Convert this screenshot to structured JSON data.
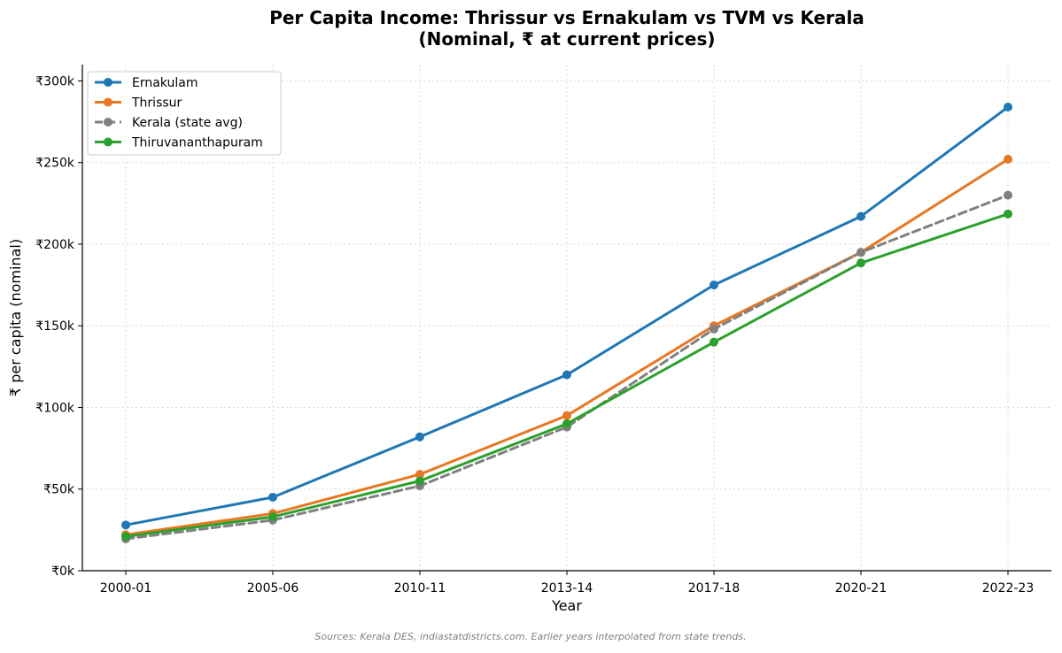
{
  "chart_data": {
    "type": "line",
    "title_lines": [
      "Per Capita Income: Thrissur vs Ernakulam vs TVM vs Kerala",
      "(Nominal, ₹ at current prices)"
    ],
    "xlabel": "Year",
    "ylabel": "₹ per capita (nominal)",
    "categories": [
      "2000-01",
      "2005-06",
      "2010-11",
      "2013-14",
      "2017-18",
      "2020-21",
      "2022-23"
    ],
    "ylim": [
      0,
      310000
    ],
    "yticks": [
      0,
      50000,
      100000,
      150000,
      200000,
      250000,
      300000
    ],
    "ytick_labels": [
      "₹0k",
      "₹50k",
      "₹100k",
      "₹150k",
      "₹200k",
      "₹250k",
      "₹300k"
    ],
    "grid": true,
    "legend_position": "top-left",
    "series": [
      {
        "name": "Ernakulam",
        "color": "#1f77b4",
        "dashed": false,
        "values": [
          28000,
          45000,
          82000,
          120000,
          175000,
          217000,
          284000
        ]
      },
      {
        "name": "Thrissur",
        "color": "#e87722",
        "dashed": false,
        "values": [
          22000,
          35000,
          59000,
          95000,
          150000,
          195000,
          252000
        ]
      },
      {
        "name": "Kerala (state avg)",
        "color": "#808080",
        "dashed": true,
        "values": [
          19500,
          31000,
          52000,
          88000,
          148000,
          195000,
          230000
        ]
      },
      {
        "name": "Thiruvananthapuram",
        "color": "#2ca02c",
        "dashed": false,
        "values": [
          21000,
          33000,
          55000,
          90000,
          140000,
          188500,
          218500
        ]
      }
    ],
    "source_note": "Sources: Kerala DES, indiastatdistricts.com. Earlier years interpolated from state trends."
  }
}
